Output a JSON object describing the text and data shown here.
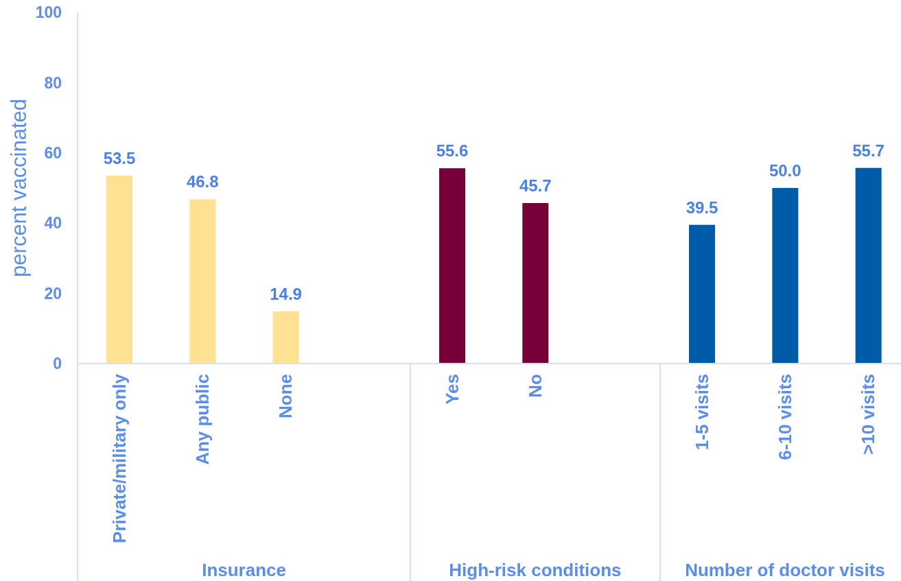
{
  "chart_data": [
    {
      "type": "bar",
      "ylabel": "percent vaccinated",
      "xlabel": "Insurance",
      "categories": [
        "Private/military only",
        "Any public",
        "None",
        null
      ],
      "values": [
        53.5,
        46.8,
        14.9,
        null
      ],
      "value_labels": [
        "53.5",
        "46.8",
        "14.9",
        null
      ],
      "color": "#ffe193",
      "ylim": [
        0,
        100
      ],
      "yticks": [
        0,
        20,
        40,
        60,
        80,
        100
      ]
    },
    {
      "type": "bar",
      "xlabel": "High-risk conditions",
      "categories": [
        "Yes",
        "No",
        null
      ],
      "values": [
        55.6,
        45.7,
        null
      ],
      "value_labels": [
        "55.6",
        "45.7",
        null
      ],
      "color": "#760037",
      "ylim": [
        0,
        100
      ],
      "yticks": [
        0,
        20,
        40,
        60,
        80,
        100
      ],
      "tick_labels": "x"
    },
    {
      "type": "bar",
      "xlabel": "Number of doctor visits",
      "categories": [
        "1-5 visits",
        "6-10 visits",
        ">10 visits"
      ],
      "values": [
        39.5,
        50.0,
        55.7
      ],
      "value_labels": [
        "39.5",
        "50.0",
        "55.7"
      ],
      "color": "#005ca8",
      "ylim": [
        0,
        100
      ],
      "yticks": [
        0,
        20,
        40,
        60,
        80,
        100
      ],
      "tick_labels": "x"
    }
  ]
}
